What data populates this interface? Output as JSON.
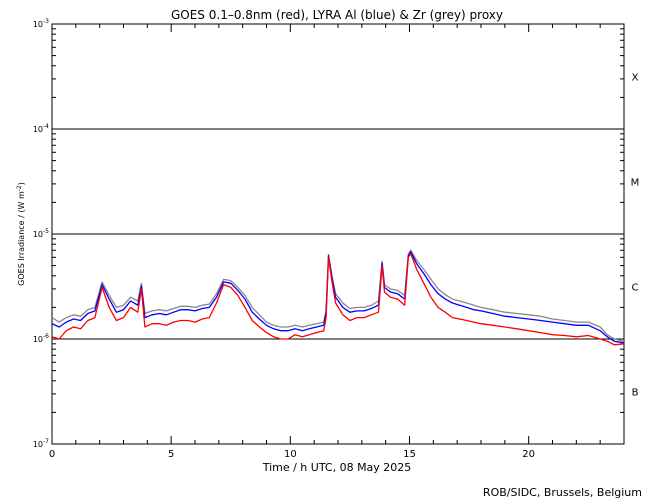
{
  "chart_data": {
    "type": "line",
    "title": "GOES 0.1–0.8nm (red), LYRA Al (blue) & Zr (grey) proxy",
    "xlabel": "Time / h UTC, 08 May 2025",
    "ylabel_main": "GOES Irradiance / (W m",
    "ylabel_exp": "-2",
    "ylabel_close": ")",
    "credit": "ROB/SIDC, Brussels, Belgium",
    "xlim": [
      0,
      24
    ],
    "ylim_log10": [
      -7,
      -3
    ],
    "y_scale": "log",
    "x_ticks": [
      0,
      5,
      10,
      15,
      20
    ],
    "x_tick_labels": [
      "0",
      "5",
      "10",
      "15",
      "20"
    ],
    "y_ticks_log10": [
      -7,
      -6,
      -5,
      -4,
      -3
    ],
    "y_tick_labels": [
      {
        "base": "10",
        "exp": "-7"
      },
      {
        "base": "10",
        "exp": "-6"
      },
      {
        "base": "10",
        "exp": "-5"
      },
      {
        "base": "10",
        "exp": "-4"
      },
      {
        "base": "10",
        "exp": "-3"
      }
    ],
    "flare_class_lines_log10": [
      -6,
      -5,
      -4
    ],
    "flare_classes": [
      {
        "label": "B",
        "log10_center": -6.5
      },
      {
        "label": "C",
        "log10_center": -5.5
      },
      {
        "label": "M",
        "log10_center": -4.5
      },
      {
        "label": "X",
        "log10_center": -3.5
      }
    ],
    "series": [
      {
        "name": "GOES 0.1-0.8nm",
        "color": "#ff0000",
        "x": [
          0,
          0.3,
          0.6,
          0.9,
          1.2,
          1.5,
          1.8,
          2.1,
          2.4,
          2.7,
          3.0,
          3.3,
          3.6,
          3.75,
          3.9,
          4.2,
          4.5,
          4.8,
          5.1,
          5.4,
          5.7,
          6.0,
          6.3,
          6.6,
          6.9,
          7.2,
          7.5,
          7.8,
          8.1,
          8.4,
          8.7,
          9.0,
          9.3,
          9.6,
          9.9,
          10.2,
          10.5,
          10.8,
          11.1,
          11.4,
          11.5,
          11.6,
          11.75,
          11.9,
          12.2,
          12.5,
          12.8,
          13.1,
          13.4,
          13.7,
          13.85,
          13.95,
          14.2,
          14.5,
          14.8,
          14.95,
          15.05,
          15.3,
          15.6,
          15.9,
          16.2,
          16.5,
          16.8,
          17.1,
          17.4,
          17.7,
          18.0,
          18.5,
          19.0,
          19.5,
          20.0,
          20.5,
          21.0,
          21.5,
          22.0,
          22.5,
          23.0,
          23.3,
          23.6,
          24.0
        ],
        "y": [
          1.05e-06,
          1e-06,
          1.2e-06,
          1.3e-06,
          1.25e-06,
          1.5e-06,
          1.6e-06,
          3.1e-06,
          2e-06,
          1.5e-06,
          1.6e-06,
          2e-06,
          1.8e-06,
          3e-06,
          1.3e-06,
          1.4e-06,
          1.4e-06,
          1.35e-06,
          1.45e-06,
          1.5e-06,
          1.5e-06,
          1.45e-06,
          1.55e-06,
          1.6e-06,
          2.2e-06,
          3.3e-06,
          3.1e-06,
          2.6e-06,
          2e-06,
          1.5e-06,
          1.3e-06,
          1.15e-06,
          1.05e-06,
          1e-06,
          1e-06,
          1.1e-06,
          1.05e-06,
          1.1e-06,
          1.15e-06,
          1.2e-06,
          1.6e-06,
          6e-06,
          3.5e-06,
          2.2e-06,
          1.7e-06,
          1.5e-06,
          1.6e-06,
          1.6e-06,
          1.7e-06,
          1.8e-06,
          5e-06,
          2.8e-06,
          2.5e-06,
          2.4e-06,
          2.1e-06,
          6e-06,
          6.5e-06,
          4.6e-06,
          3.4e-06,
          2.5e-06,
          2e-06,
          1.8e-06,
          1.6e-06,
          1.55e-06,
          1.5e-06,
          1.45e-06,
          1.4e-06,
          1.35e-06,
          1.3e-06,
          1.25e-06,
          1.2e-06,
          1.15e-06,
          1.1e-06,
          1.08e-06,
          1.05e-06,
          1.08e-06,
          1e-06,
          9.5e-07,
          8.8e-07,
          9e-07
        ]
      },
      {
        "name": "LYRA Al proxy",
        "color": "#0000ff",
        "x": [
          0,
          0.3,
          0.6,
          0.9,
          1.2,
          1.5,
          1.8,
          2.1,
          2.4,
          2.7,
          3.0,
          3.3,
          3.6,
          3.75,
          3.9,
          4.2,
          4.5,
          4.8,
          5.1,
          5.4,
          5.7,
          6.0,
          6.3,
          6.6,
          6.9,
          7.2,
          7.5,
          7.8,
          8.1,
          8.4,
          8.7,
          9.0,
          9.3,
          9.6,
          9.9,
          10.2,
          10.5,
          10.8,
          11.1,
          11.4,
          11.5,
          11.6,
          11.75,
          11.9,
          12.2,
          12.5,
          12.8,
          13.1,
          13.4,
          13.7,
          13.85,
          13.95,
          14.2,
          14.5,
          14.8,
          14.95,
          15.05,
          15.3,
          15.6,
          15.9,
          16.2,
          16.5,
          16.8,
          17.1,
          17.4,
          17.7,
          18.0,
          18.5,
          19.0,
          19.5,
          20.0,
          20.5,
          21.0,
          21.5,
          22.0,
          22.5,
          23.0,
          23.3,
          23.6,
          24.0
        ],
        "y": [
          1.4e-06,
          1.3e-06,
          1.45e-06,
          1.55e-06,
          1.5e-06,
          1.75e-06,
          1.85e-06,
          3.3e-06,
          2.4e-06,
          1.8e-06,
          1.9e-06,
          2.3e-06,
          2.1e-06,
          3.2e-06,
          1.6e-06,
          1.7e-06,
          1.75e-06,
          1.7e-06,
          1.8e-06,
          1.9e-06,
          1.9e-06,
          1.85e-06,
          1.95e-06,
          2e-06,
          2.5e-06,
          3.5e-06,
          3.4e-06,
          2.9e-06,
          2.4e-06,
          1.8e-06,
          1.55e-06,
          1.35e-06,
          1.25e-06,
          1.2e-06,
          1.2e-06,
          1.25e-06,
          1.2e-06,
          1.25e-06,
          1.3e-06,
          1.35e-06,
          1.8e-06,
          6.2e-06,
          3.8e-06,
          2.5e-06,
          2e-06,
          1.8e-06,
          1.85e-06,
          1.85e-06,
          1.95e-06,
          2.1e-06,
          5.3e-06,
          3.1e-06,
          2.8e-06,
          2.7e-06,
          2.4e-06,
          6.2e-06,
          6.8e-06,
          5.2e-06,
          4.2e-06,
          3.3e-06,
          2.7e-06,
          2.4e-06,
          2.2e-06,
          2.1e-06,
          2e-06,
          1.9e-06,
          1.85e-06,
          1.75e-06,
          1.65e-06,
          1.6e-06,
          1.55e-06,
          1.5e-06,
          1.45e-06,
          1.4e-06,
          1.35e-06,
          1.35e-06,
          1.2e-06,
          1.05e-06,
          9.5e-07,
          9.2e-07
        ]
      },
      {
        "name": "LYRA Zr proxy",
        "color": "#888888",
        "x": [
          0,
          0.3,
          0.6,
          0.9,
          1.2,
          1.5,
          1.8,
          2.1,
          2.4,
          2.7,
          3.0,
          3.3,
          3.6,
          3.75,
          3.9,
          4.2,
          4.5,
          4.8,
          5.1,
          5.4,
          5.7,
          6.0,
          6.3,
          6.6,
          6.9,
          7.2,
          7.5,
          7.8,
          8.1,
          8.4,
          8.7,
          9.0,
          9.3,
          9.6,
          9.9,
          10.2,
          10.5,
          10.8,
          11.1,
          11.4,
          11.5,
          11.6,
          11.75,
          11.9,
          12.2,
          12.5,
          12.8,
          13.1,
          13.4,
          13.7,
          13.85,
          13.95,
          14.2,
          14.5,
          14.8,
          14.95,
          15.05,
          15.3,
          15.6,
          15.9,
          16.2,
          16.5,
          16.8,
          17.1,
          17.4,
          17.7,
          18.0,
          18.5,
          19.0,
          19.5,
          20.0,
          20.5,
          21.0,
          21.5,
          22.0,
          22.5,
          23.0,
          23.3,
          23.6,
          24.0
        ],
        "y": [
          1.6e-06,
          1.45e-06,
          1.6e-06,
          1.7e-06,
          1.65e-06,
          1.9e-06,
          2e-06,
          3.5e-06,
          2.6e-06,
          2e-06,
          2.1e-06,
          2.5e-06,
          2.3e-06,
          3.4e-06,
          1.75e-06,
          1.85e-06,
          1.9e-06,
          1.85e-06,
          1.95e-06,
          2.05e-06,
          2.05e-06,
          2e-06,
          2.1e-06,
          2.15e-06,
          2.7e-06,
          3.7e-06,
          3.6e-06,
          3.1e-06,
          2.6e-06,
          2e-06,
          1.7e-06,
          1.45e-06,
          1.35e-06,
          1.3e-06,
          1.3e-06,
          1.35e-06,
          1.3e-06,
          1.35e-06,
          1.4e-06,
          1.45e-06,
          1.9e-06,
          6.4e-06,
          4e-06,
          2.7e-06,
          2.2e-06,
          1.95e-06,
          2e-06,
          2e-06,
          2.1e-06,
          2.3e-06,
          5.5e-06,
          3.3e-06,
          3e-06,
          2.9e-06,
          2.6e-06,
          6.4e-06,
          7e-06,
          5.6e-06,
          4.6e-06,
          3.7e-06,
          3e-06,
          2.65e-06,
          2.4e-06,
          2.3e-06,
          2.2e-06,
          2.1e-06,
          2e-06,
          1.9e-06,
          1.8e-06,
          1.75e-06,
          1.7e-06,
          1.65e-06,
          1.55e-06,
          1.5e-06,
          1.45e-06,
          1.45e-06,
          1.3e-06,
          1.1e-06,
          1e-06,
          9.5e-07
        ]
      }
    ]
  }
}
